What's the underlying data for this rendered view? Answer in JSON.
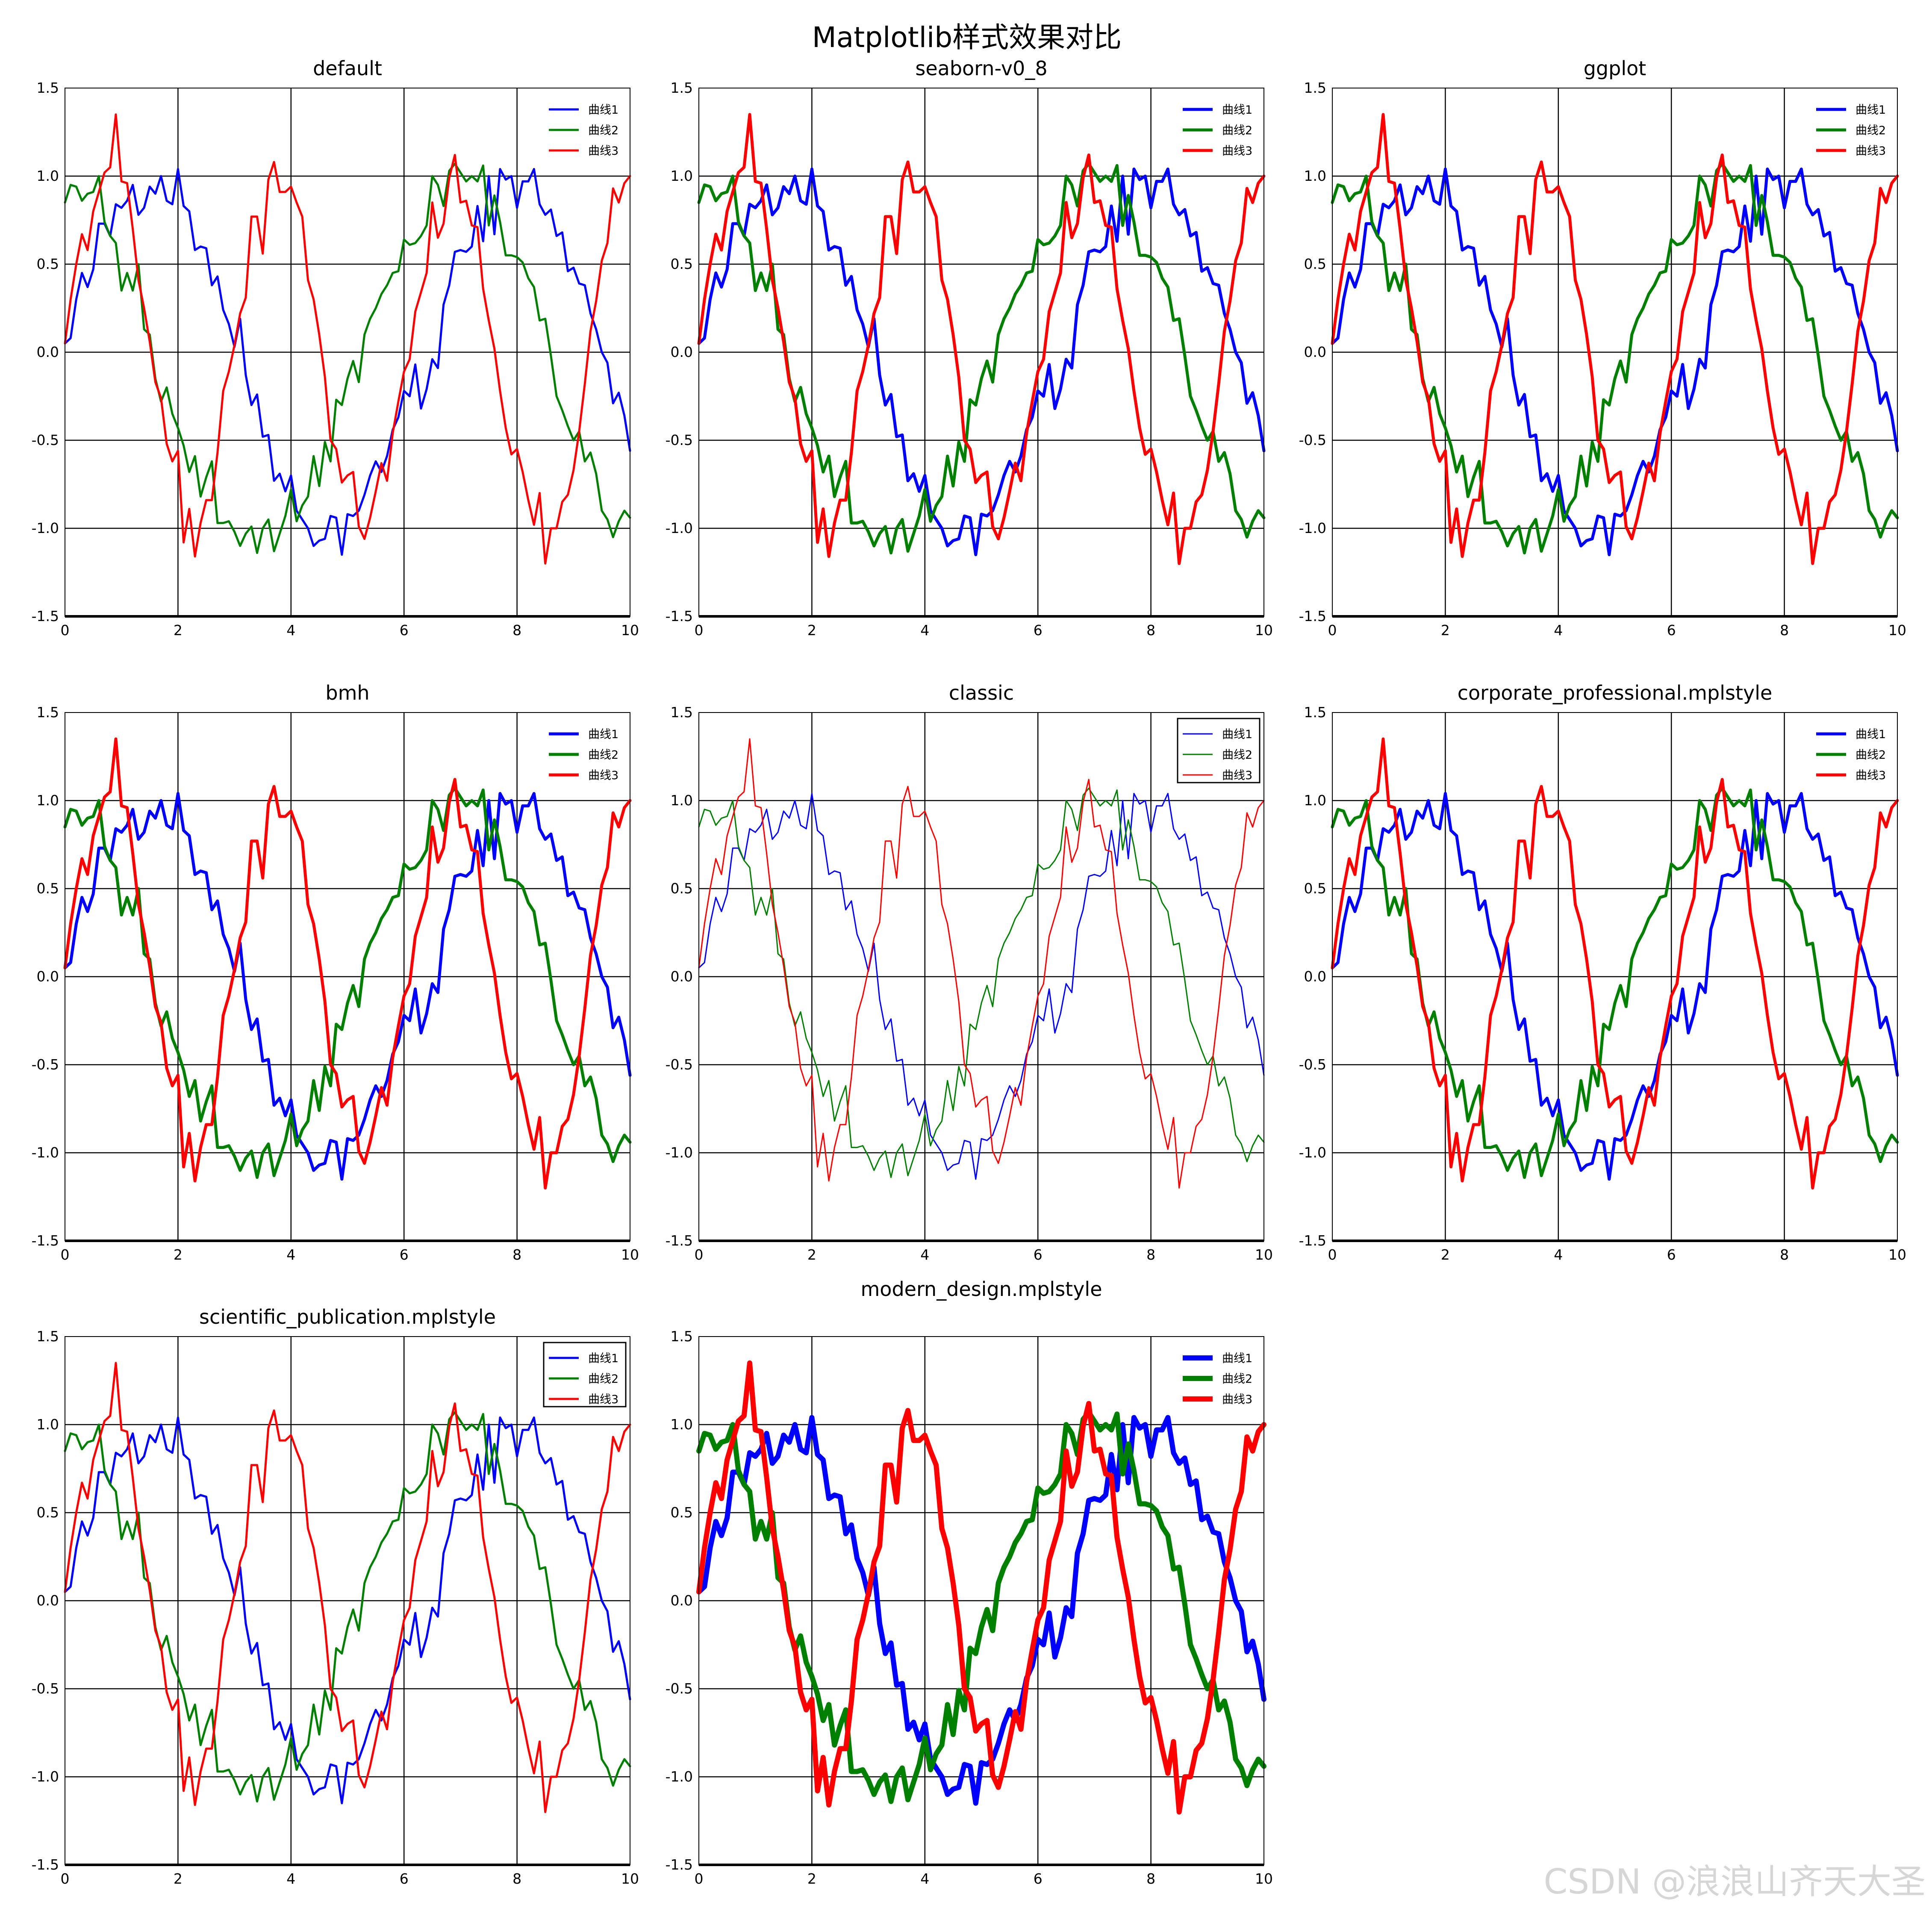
{
  "figure": {
    "suptitle": "Matplotlib样式效果对比",
    "watermark": "CSDN @浪浪山齐天大圣"
  },
  "colors": {
    "series": [
      "#0000ff",
      "#008000",
      "#ff0000"
    ],
    "grid": "#000000",
    "axes": "#000000"
  },
  "chart_data": [
    {
      "type": "line",
      "title": "default",
      "xlim": [
        0,
        10
      ],
      "ylim": [
        -1.5,
        1.5
      ],
      "xticks": [
        "0",
        "2",
        "4",
        "6",
        "8",
        "10"
      ],
      "yticks": [
        "1.5",
        "1.0",
        "0.5",
        "0.0",
        "-0.5",
        "-1.0",
        "-1.5"
      ],
      "grid": true,
      "legend_position": "top-right",
      "legend_framed": false,
      "line_width": "normal",
      "series_names": [
        "曲线1",
        "曲线2",
        "曲线3"
      ]
    },
    {
      "type": "line",
      "title": "seaborn-v0_8",
      "xlim": [
        0,
        10
      ],
      "ylim": [
        -1.5,
        1.5
      ],
      "xticks": [
        "0",
        "2",
        "4",
        "6",
        "8",
        "10"
      ],
      "yticks": [
        "1.5",
        "1.0",
        "0.5",
        "0.0",
        "-0.5",
        "-1.0",
        "-1.5"
      ],
      "grid": true,
      "legend_position": "top-right",
      "legend_framed": false,
      "line_width": "medium",
      "series_names": [
        "曲线1",
        "曲线2",
        "曲线3"
      ]
    },
    {
      "type": "line",
      "title": "ggplot",
      "xlim": [
        0,
        10
      ],
      "ylim": [
        -1.5,
        1.5
      ],
      "xticks": [
        "0",
        "2",
        "4",
        "6",
        "8",
        "10"
      ],
      "yticks": [
        "1.5",
        "1.0",
        "0.5",
        "0.0",
        "-0.5",
        "-1.0",
        "-1.5"
      ],
      "grid": true,
      "legend_position": "top-right",
      "legend_framed": false,
      "line_width": "medium",
      "series_names": [
        "曲线1",
        "曲线2",
        "曲线3"
      ]
    },
    {
      "type": "line",
      "title": "bmh",
      "xlim": [
        0,
        10
      ],
      "ylim": [
        -1.5,
        1.5
      ],
      "xticks": [
        "0",
        "2",
        "4",
        "6",
        "8",
        "10"
      ],
      "yticks": [
        "1.5",
        "1.0",
        "0.5",
        "0.0",
        "-0.5",
        "-1.0",
        "-1.5"
      ],
      "grid": true,
      "legend_position": "top-right",
      "legend_framed": false,
      "line_width": "medium",
      "series_names": [
        "曲线1",
        "曲线2",
        "曲线3"
      ]
    },
    {
      "type": "line",
      "title": "classic",
      "xlim": [
        0,
        10
      ],
      "ylim": [
        -1.5,
        1.5
      ],
      "xticks": [
        "0",
        "2",
        "4",
        "6",
        "8",
        "10"
      ],
      "yticks": [
        "1.5",
        "1.0",
        "0.5",
        "0.0",
        "-0.5",
        "-1.0",
        "-1.5"
      ],
      "grid": true,
      "legend_position": "top-right",
      "legend_framed": true,
      "line_width": "thin",
      "series_names": [
        "曲线1",
        "曲线2",
        "曲线3"
      ]
    },
    {
      "type": "line",
      "title": "corporate_professional.mplstyle",
      "xlim": [
        0,
        10
      ],
      "ylim": [
        -1.5,
        1.5
      ],
      "xticks": [
        "0",
        "2",
        "4",
        "6",
        "8",
        "10"
      ],
      "yticks": [
        "1.5",
        "1.0",
        "0.5",
        "0.0",
        "-0.5",
        "-1.0",
        "-1.5"
      ],
      "grid": true,
      "legend_position": "top-right",
      "legend_framed": false,
      "line_width": "medium",
      "series_names": [
        "曲线1",
        "曲线2",
        "曲线3"
      ]
    },
    {
      "type": "line",
      "title": "scientific_publication.mplstyle",
      "xlim": [
        0,
        10
      ],
      "ylim": [
        -1.5,
        1.5
      ],
      "xticks": [
        "0",
        "2",
        "4",
        "6",
        "8",
        "10"
      ],
      "yticks": [
        "1.5",
        "1.0",
        "0.5",
        "0.0",
        "-0.5",
        "-1.0",
        "-1.5"
      ],
      "grid": true,
      "legend_position": "top-right",
      "legend_framed": true,
      "line_width": "normal",
      "series_names": [
        "曲线1",
        "曲线2",
        "曲线3"
      ]
    },
    {
      "type": "line",
      "title": "modern_design.mplstyle",
      "xlim": [
        0,
        10
      ],
      "ylim": [
        -1.5,
        1.5
      ],
      "xticks": [
        "0",
        "2",
        "4",
        "6",
        "8",
        "10"
      ],
      "yticks": [
        "1.5",
        "1.0",
        "0.5",
        "0.0",
        "-0.5",
        "-1.0",
        "-1.5"
      ],
      "grid": true,
      "legend_position": "top-right",
      "legend_framed": false,
      "line_width": "thick",
      "series_names": [
        "曲线1",
        "曲线2",
        "曲线3"
      ]
    }
  ],
  "series_data": {
    "x": [
      0,
      0.1,
      0.2,
      0.3,
      0.4,
      0.5,
      0.6,
      0.7,
      0.8,
      0.9,
      1.0,
      1.1,
      1.2,
      1.3,
      1.4,
      1.5,
      1.6,
      1.7,
      1.8,
      1.9,
      2.0,
      2.1,
      2.2,
      2.3,
      2.4,
      2.5,
      2.6,
      2.7,
      2.8,
      2.9,
      3.0,
      3.1,
      3.2,
      3.3,
      3.4,
      3.5,
      3.6,
      3.7,
      3.8,
      3.9,
      4.0,
      4.1,
      4.2,
      4.3,
      4.4,
      4.5,
      4.6,
      4.7,
      4.8,
      4.9,
      5.0,
      5.1,
      5.2,
      5.3,
      5.4,
      5.5,
      5.6,
      5.7,
      5.8,
      5.9,
      6.0,
      6.1,
      6.2,
      6.3,
      6.4,
      6.5,
      6.6,
      6.7,
      6.8,
      6.9,
      7.0,
      7.1,
      7.2,
      7.3,
      7.4,
      7.5,
      7.6,
      7.7,
      7.8,
      7.9,
      8.0,
      8.1,
      8.2,
      8.3,
      8.4,
      8.5,
      8.6,
      8.7,
      8.8,
      8.9,
      9.0,
      9.1,
      9.2,
      9.3,
      9.4,
      9.5,
      9.6,
      9.7,
      9.8,
      9.9,
      10.0
    ],
    "y": [
      [
        0.05,
        0.08,
        0.3,
        0.45,
        0.37,
        0.47,
        0.73,
        0.73,
        0.66,
        0.84,
        0.82,
        0.86,
        0.95,
        0.78,
        0.82,
        0.94,
        0.9,
        1.0,
        0.86,
        0.84,
        1.04,
        0.83,
        0.8,
        0.58,
        0.6,
        0.59,
        0.38,
        0.43,
        0.24,
        0.16,
        0.03,
        0.19,
        -0.13,
        -0.3,
        -0.24,
        -0.48,
        -0.47,
        -0.73,
        -0.69,
        -0.79,
        -0.7,
        -0.9,
        -0.95,
        -1.0,
        -1.1,
        -1.07,
        -1.06,
        -0.93,
        -0.94,
        -1.15,
        -0.92,
        -0.93,
        -0.9,
        -0.81,
        -0.7,
        -0.62,
        -0.68,
        -0.59,
        -0.44,
        -0.37,
        -0.22,
        -0.25,
        -0.07,
        -0.32,
        -0.21,
        -0.04,
        -0.09,
        0.27,
        0.38,
        0.57,
        0.58,
        0.57,
        0.6,
        0.83,
        0.63,
        1.0,
        0.67,
        1.04,
        0.98,
        1.0,
        0.82,
        0.97,
        0.97,
        1.04,
        0.84,
        0.78,
        0.81,
        0.66,
        0.68,
        0.46,
        0.48,
        0.39,
        0.38,
        0.22,
        0.13,
        0.0,
        -0.06,
        -0.29,
        -0.23,
        -0.36,
        -0.56
      ],
      [
        0.85,
        0.95,
        0.94,
        0.86,
        0.9,
        0.91,
        1.0,
        0.74,
        0.66,
        0.62,
        0.35,
        0.45,
        0.35,
        0.5,
        0.13,
        0.1,
        -0.15,
        -0.28,
        -0.2,
        -0.35,
        -0.43,
        -0.53,
        -0.68,
        -0.59,
        -0.82,
        -0.71,
        -0.62,
        -0.97,
        -0.97,
        -0.96,
        -1.02,
        -1.1,
        -1.03,
        -0.99,
        -1.14,
        -1.0,
        -0.95,
        -1.13,
        -1.03,
        -0.93,
        -0.78,
        -0.96,
        -0.87,
        -0.82,
        -0.59,
        -0.76,
        -0.51,
        -0.62,
        -0.27,
        -0.3,
        -0.15,
        -0.05,
        -0.17,
        0.1,
        0.19,
        0.25,
        0.33,
        0.38,
        0.45,
        0.46,
        0.64,
        0.61,
        0.62,
        0.66,
        0.72,
        1.0,
        0.95,
        0.83,
        1.03,
        1.07,
        1.02,
        0.97,
        1.0,
        0.97,
        1.06,
        0.72,
        0.89,
        0.74,
        0.55,
        0.55,
        0.54,
        0.51,
        0.42,
        0.37,
        0.18,
        0.19,
        -0.02,
        -0.25,
        -0.33,
        -0.42,
        -0.5,
        -0.45,
        -0.62,
        -0.57,
        -0.69,
        -0.9,
        -0.95,
        -1.05,
        -0.96,
        -0.9,
        -0.94
      ],
      [
        0.05,
        0.3,
        0.5,
        0.67,
        0.58,
        0.8,
        0.91,
        1.02,
        1.05,
        1.35,
        0.97,
        0.96,
        0.7,
        0.41,
        0.25,
        0.06,
        -0.17,
        -0.26,
        -0.52,
        -0.62,
        -0.56,
        -1.08,
        -0.89,
        -1.16,
        -0.97,
        -0.84,
        -0.84,
        -0.57,
        -0.22,
        -0.11,
        0.04,
        0.22,
        0.31,
        0.77,
        0.77,
        0.56,
        0.98,
        1.08,
        0.91,
        0.91,
        0.94,
        0.85,
        0.77,
        0.41,
        0.3,
        0.1,
        -0.14,
        -0.5,
        -0.55,
        -0.74,
        -0.7,
        -0.68,
        -0.99,
        -1.06,
        -0.94,
        -0.79,
        -0.63,
        -0.73,
        -0.46,
        -0.28,
        -0.11,
        -0.04,
        0.23,
        0.34,
        0.45,
        0.85,
        0.65,
        0.73,
        0.99,
        1.12,
        0.85,
        0.86,
        0.72,
        0.71,
        0.36,
        0.18,
        0.02,
        -0.22,
        -0.43,
        -0.58,
        -0.55,
        -0.68,
        -0.84,
        -0.98,
        -0.8,
        -1.2,
        -1.0,
        -1.0,
        -0.85,
        -0.81,
        -0.67,
        -0.45,
        -0.18,
        0.12,
        0.29,
        0.52,
        0.62,
        0.93,
        0.85,
        0.96,
        1.0
      ]
    ]
  }
}
